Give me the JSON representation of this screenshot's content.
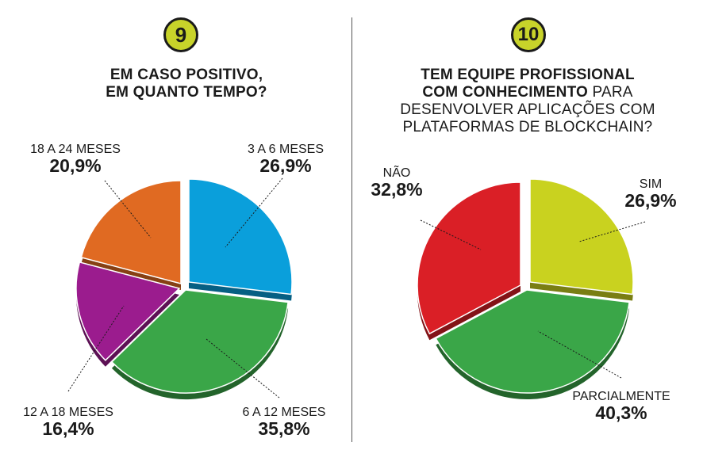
{
  "left_panel": {
    "badge": "9",
    "title_line1": "EM CASO POSITIVO,",
    "title_line2": "EM QUANTO TEMPO?"
  },
  "right_panel": {
    "badge": "10",
    "title_line1": "TEM EQUIPE PROFISSIONAL",
    "title_line2_bold": "COM CONHECIMENTO",
    "title_line2_light": " PARA",
    "title_line3": "DESENVOLVER APLICAÇÕES COM",
    "title_line4": "PLATAFORMAS DE BLOCKCHAIN?"
  },
  "chart_data": [
    {
      "type": "pie",
      "slices": [
        {
          "label": "3 A 6 MESES",
          "value": 26.9,
          "display": "26,9%",
          "color": "#0a9fdb"
        },
        {
          "label": "6 A 12 MESES",
          "value": 35.8,
          "display": "35,8%",
          "color": "#3aa648"
        },
        {
          "label": "12 A 18 MESES",
          "value": 16.4,
          "display": "16,4%",
          "color": "#9b1c8e"
        },
        {
          "label": "18 A 24 MESES",
          "value": 20.9,
          "display": "20,9%",
          "color": "#e06a22"
        }
      ]
    },
    {
      "type": "pie",
      "slices": [
        {
          "label": "SIM",
          "value": 26.9,
          "display": "26,9%",
          "color": "#c9d21f"
        },
        {
          "label": "PARCIALMENTE",
          "value": 40.3,
          "display": "40,3%",
          "color": "#3aa648"
        },
        {
          "label": "NÃO",
          "value": 32.8,
          "display": "32,8%",
          "color": "#da1f26"
        }
      ]
    }
  ]
}
